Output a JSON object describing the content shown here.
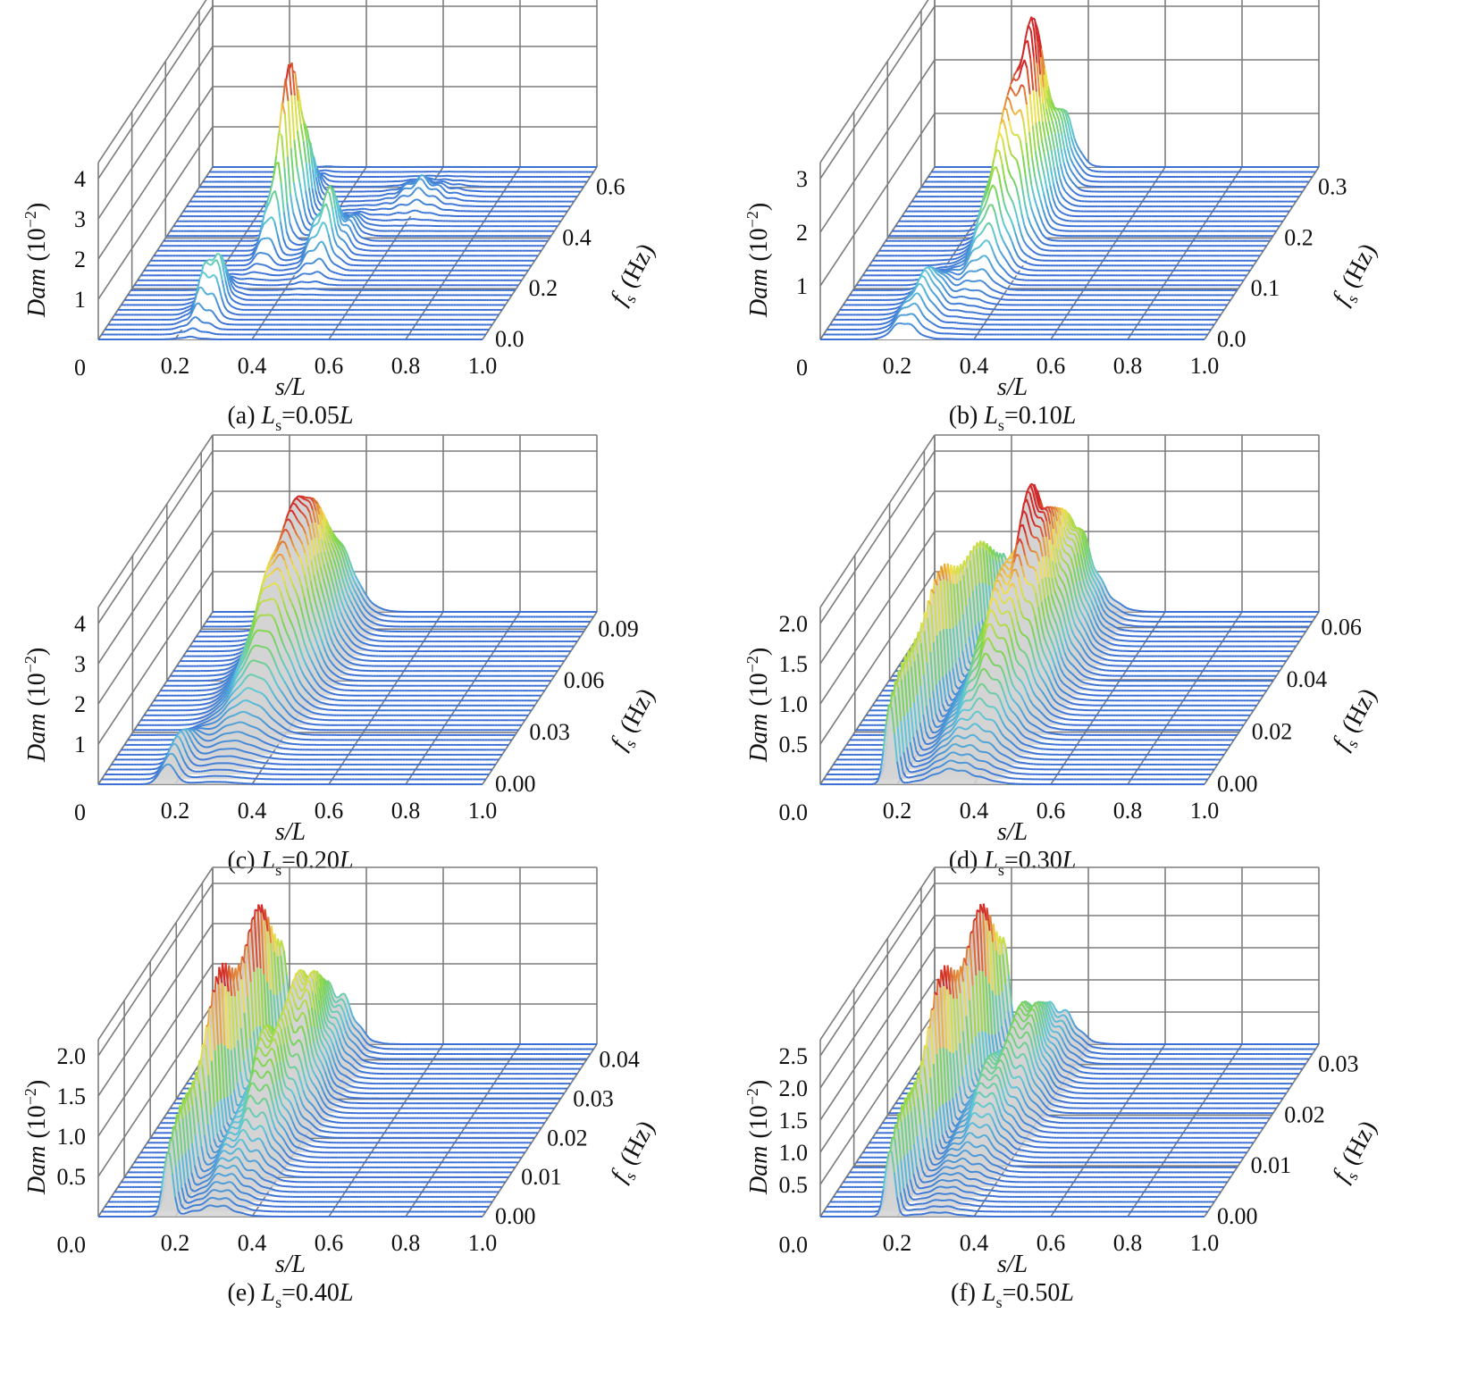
{
  "figure": {
    "dam_label": "Dam",
    "dam_unit": "(10",
    "dam_exp": "−2",
    "dam_close": ")",
    "x_label_s": "s",
    "x_label_L": "/L",
    "f_label": "f",
    "f_sub": "s",
    "f_unit": " (Hz)",
    "colors": {
      "low": "#3a6fd6",
      "mid_low": "#5ec8d8",
      "mid": "#7cd64a",
      "mid_high": "#f2e14a",
      "high": "#d22a2a",
      "surface": "#d4d4d4",
      "grid": "#7d7d7d"
    }
  },
  "chart_data": [
    {
      "type": "3d-waterfall",
      "caption": {
        "letter": "(a) ",
        "L": "L",
        "sub": "s",
        "value": "=0.05",
        "L2": "L"
      },
      "xlabel": "s/L",
      "ylabel": "Dam (10^-2)",
      "zlabel": "f_s (Hz)",
      "x_ticks": [
        "0.2",
        "0.4",
        "0.6",
        "0.8",
        "1.0"
      ],
      "x_origin_label": "0",
      "z_tick_values": [
        1,
        2,
        3,
        4
      ],
      "z_ticks": [
        "1",
        "2",
        "3",
        "4"
      ],
      "z_max": 4.4,
      "y_ticks": [
        "0.0",
        "0.2",
        "0.4",
        "0.6"
      ],
      "y_tick_values": [
        0.0,
        0.2,
        0.4,
        0.6
      ],
      "y_max": 0.68,
      "n_traces": 36,
      "peaks": [
        {
          "s": 0.24,
          "f": 0.12,
          "amp": 1.2,
          "sw": 0.025,
          "fw": 0.05
        },
        {
          "s": 0.3,
          "f": 0.45,
          "amp": 4.0,
          "sw": 0.018,
          "fw": 0.07
        },
        {
          "s": 0.45,
          "f": 0.35,
          "amp": 1.3,
          "sw": 0.03,
          "fw": 0.06
        },
        {
          "s": 0.6,
          "f": 0.55,
          "amp": 0.4,
          "sw": 0.05,
          "fw": 0.04
        }
      ],
      "ripple": 0.45,
      "surface": false
    },
    {
      "type": "3d-waterfall",
      "caption": {
        "letter": "(b) ",
        "L": "L",
        "sub": "s",
        "value": "=0.10",
        "L2": "L"
      },
      "xlabel": "s/L",
      "ylabel": "Dam (10^-2)",
      "zlabel": "f_s (Hz)",
      "x_ticks": [
        "0.2",
        "0.4",
        "0.6",
        "0.8",
        "1.0"
      ],
      "x_origin_label": "0",
      "z_tick_values": [
        1,
        2,
        3
      ],
      "z_ticks": [
        "1",
        "2",
        "3"
      ],
      "z_max": 3.3,
      "y_ticks": [
        "0.0",
        "0.1",
        "0.2",
        "0.3"
      ],
      "y_tick_values": [
        0.0,
        0.1,
        0.2,
        0.3
      ],
      "y_max": 0.34,
      "n_traces": 36,
      "peaks": [
        {
          "s": 0.32,
          "f": 0.24,
          "amp": 3.2,
          "sw": 0.035,
          "fw": 0.07
        },
        {
          "s": 0.22,
          "f": 0.05,
          "amp": 0.7,
          "sw": 0.03,
          "fw": 0.04
        }
      ],
      "ripple": 0.2,
      "surface": false
    },
    {
      "type": "3d-waterfall",
      "caption": {
        "letter": "(c) ",
        "L": "L",
        "sub": "s",
        "value": "=0.20",
        "L2": "L"
      },
      "xlabel": "s/L",
      "ylabel": "Dam (10^-2)",
      "zlabel": "f_s (Hz)",
      "x_ticks": [
        "0.2",
        "0.4",
        "0.6",
        "0.8",
        "1.0"
      ],
      "x_origin_label": "0",
      "z_tick_values": [
        1,
        2,
        3,
        4
      ],
      "z_ticks": [
        "1",
        "2",
        "3",
        "4"
      ],
      "z_max": 4.4,
      "y_ticks": [
        "0.00",
        "0.03",
        "0.06",
        "0.09"
      ],
      "y_tick_values": [
        0.0,
        0.03,
        0.06,
        0.09
      ],
      "y_max": 0.1,
      "n_traces": 36,
      "peaks": [
        {
          "s": 0.3,
          "f": 0.072,
          "amp": 3.9,
          "sw": 0.055,
          "fw": 0.025
        },
        {
          "s": 0.18,
          "f": 0.01,
          "amp": 0.8,
          "sw": 0.02,
          "fw": 0.01
        }
      ],
      "ripple": 0.06,
      "surface": true
    },
    {
      "type": "3d-waterfall",
      "caption": {
        "letter": "(d) ",
        "L": "L",
        "sub": "s",
        "value": "=0.30",
        "L2": "L"
      },
      "xlabel": "s/L",
      "ylabel": "Dam (10^-2)",
      "zlabel": "f_s (Hz)",
      "x_ticks": [
        "0.2",
        "0.4",
        "0.6",
        "0.8",
        "1.0"
      ],
      "x_origin_label": "0.0",
      "z_tick_values": [
        0.5,
        1.0,
        1.5,
        2.0
      ],
      "z_ticks": [
        "0.5",
        "1.0",
        "1.5",
        "2.0"
      ],
      "z_max": 2.2,
      "y_ticks": [
        "0.00",
        "0.02",
        "0.04",
        "0.06"
      ],
      "y_tick_values": [
        0.0,
        0.02,
        0.04,
        0.06
      ],
      "y_max": 0.066,
      "n_traces": 36,
      "peaks": [
        {
          "s": 0.35,
          "f": 0.044,
          "amp": 2.0,
          "sw": 0.06,
          "fw": 0.02
        },
        {
          "s": 0.18,
          "f": 0.03,
          "amp": 1.6,
          "sw": 0.012,
          "fw": 0.03
        }
      ],
      "ripple": 0.15,
      "surface": true
    },
    {
      "type": "3d-waterfall",
      "caption": {
        "letter": "(e) ",
        "L": "L",
        "sub": "s",
        "value": "=0.40",
        "L2": "L"
      },
      "xlabel": "s/L",
      "ylabel": "Dam (10^-2)",
      "zlabel": "f_s (Hz)",
      "x_ticks": [
        "0.2",
        "0.4",
        "0.6",
        "0.8",
        "1.0"
      ],
      "x_origin_label": "0.0",
      "z_tick_values": [
        0.5,
        1.0,
        1.5,
        2.0
      ],
      "z_ticks": [
        "0.5",
        "1.0",
        "1.5",
        "2.0"
      ],
      "z_max": 2.2,
      "y_ticks": [
        "0.00",
        "0.01",
        "0.02",
        "0.03",
        "0.04"
      ],
      "y_tick_values": [
        0.0,
        0.01,
        0.02,
        0.03,
        0.04
      ],
      "y_max": 0.044,
      "n_traces": 36,
      "peaks": [
        {
          "s": 0.3,
          "f": 0.03,
          "amp": 1.3,
          "sw": 0.05,
          "fw": 0.014
        },
        {
          "s": 0.18,
          "f": 0.028,
          "amp": 2.0,
          "sw": 0.012,
          "fw": 0.02
        }
      ],
      "ripple": 0.25,
      "surface": true
    },
    {
      "type": "3d-waterfall",
      "caption": {
        "letter": "(f) ",
        "L": "L",
        "sub": "s",
        "value": "=0.50",
        "L2": "L"
      },
      "xlabel": "s/L",
      "ylabel": "Dam (10^-2)",
      "zlabel": "f_s (Hz)",
      "x_ticks": [
        "0.2",
        "0.4",
        "0.6",
        "0.8",
        "1.0"
      ],
      "x_origin_label": "0.0",
      "z_tick_values": [
        0.5,
        1.0,
        1.5,
        2.0,
        2.5
      ],
      "z_ticks": [
        "0.5",
        "1.0",
        "1.5",
        "2.0",
        "2.5"
      ],
      "z_max": 2.75,
      "y_ticks": [
        "0.00",
        "0.01",
        "0.02",
        "0.03"
      ],
      "y_tick_values": [
        0.0,
        0.01,
        0.02,
        0.03
      ],
      "y_max": 0.034,
      "n_traces": 36,
      "peaks": [
        {
          "s": 0.3,
          "f": 0.024,
          "amp": 1.1,
          "sw": 0.05,
          "fw": 0.01
        },
        {
          "s": 0.18,
          "f": 0.022,
          "amp": 2.5,
          "sw": 0.012,
          "fw": 0.016
        }
      ],
      "ripple": 0.25,
      "surface": true
    }
  ]
}
